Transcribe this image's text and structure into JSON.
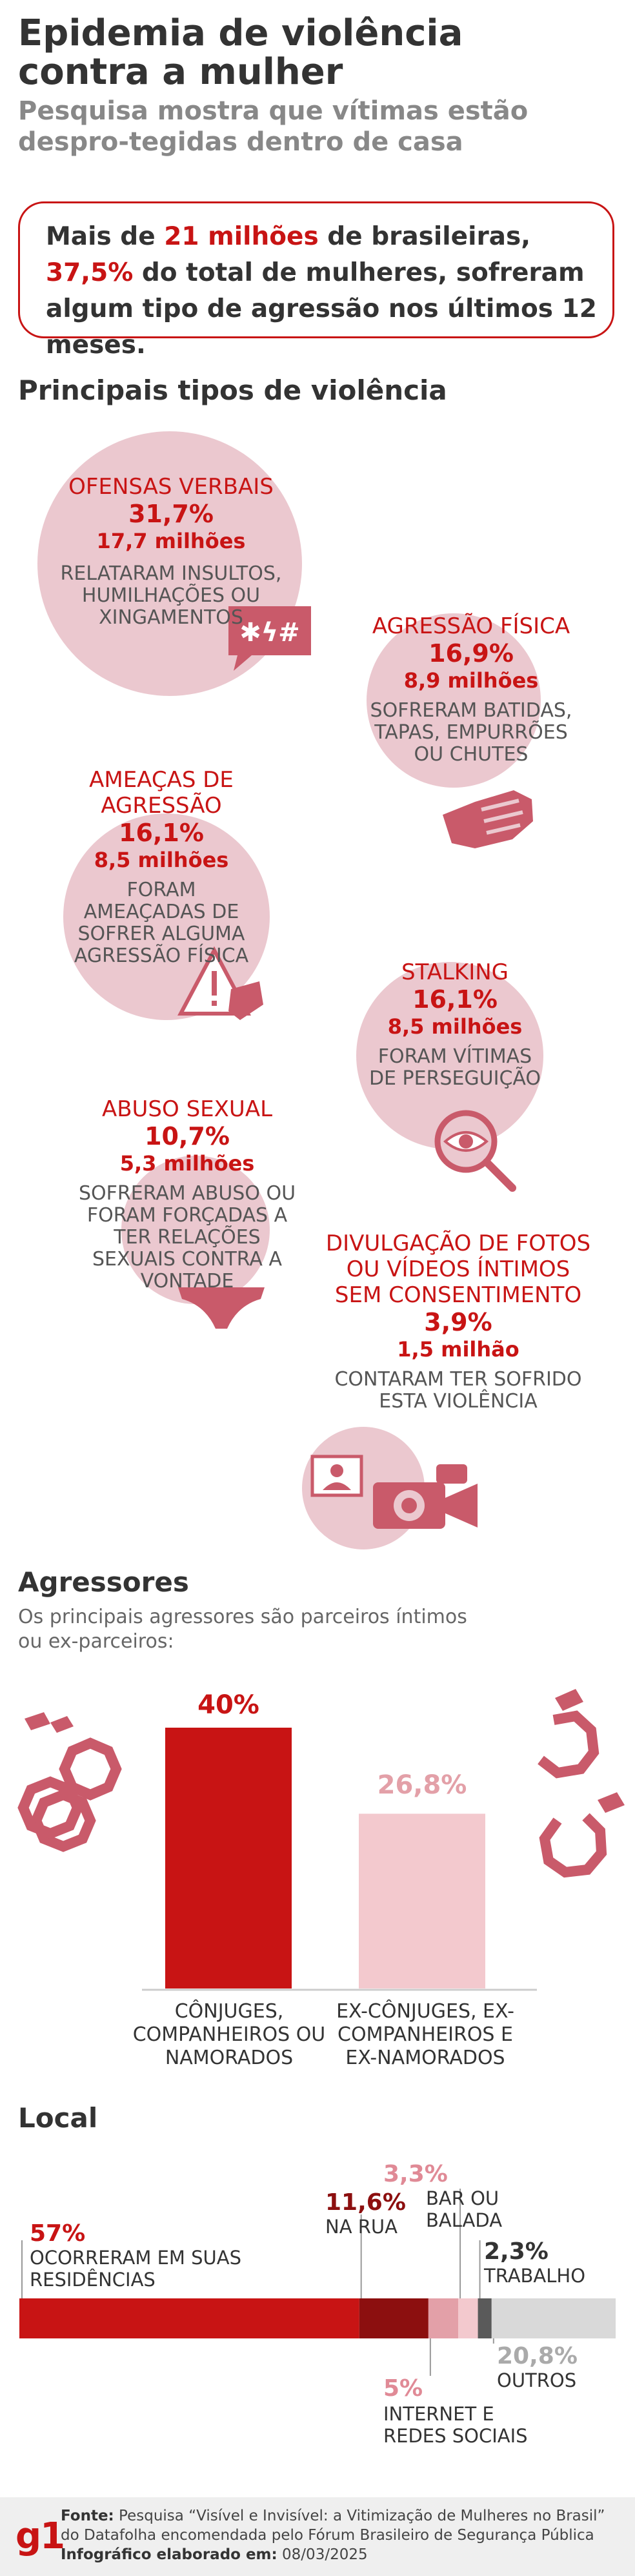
{
  "header": {
    "title": "Epidemia de violência contra a mulher",
    "subtitle": "Pesquisa mostra que vítimas estão despro-tegidas dentro de casa"
  },
  "callout": {
    "part1": "Mais de ",
    "highlight1": "21 milhões",
    "part2": " de brasileiras, ",
    "highlight2": "37,5%",
    "part3": " do total de mulheres, sofreram algum tipo de agressão nos últimos 12 meses."
  },
  "violence": {
    "title": "Principais tipos de violência",
    "items": [
      {
        "category": "OFENSAS VERBAIS",
        "percent": "31,7%",
        "absolute": "17,7 milhões",
        "description": "RELATARAM INSULTOS, HUMILHAÇÕES OU XINGAMENTOS",
        "icon": "speech-bubble-icon",
        "icon_text": "✱ϟ#"
      },
      {
        "category": "AGRESSÃO FÍSICA",
        "percent": "16,9%",
        "absolute": "8,9 milhões",
        "description": "SOFRERAM BATIDAS, TAPAS, EMPURRÕES OU CHUTES",
        "icon": "fist-icon"
      },
      {
        "category": "AMEAÇAS DE AGRESSÃO",
        "percent": "16,1%",
        "absolute": "8,5 milhões",
        "description": "FORAM AMEAÇADAS DE SOFRER ALGUMA AGRESSÃO FÍSICA",
        "icon": "warning-icon"
      },
      {
        "category": "STALKING",
        "percent": "16,1%",
        "absolute": "8,5 milhões",
        "description": "FORAM VÍTIMAS DE PERSEGUIÇÃO",
        "icon": "magnifier-eye-icon"
      },
      {
        "category": "ABUSO SEXUAL",
        "percent": "10,7%",
        "absolute": "5,3 milhões",
        "description": "SOFRERAM ABUSO OU FORAM FORÇADAS A TER RELAÇÕES SEXUAIS CONTRA A VONTADE",
        "icon": "underwear-icon"
      },
      {
        "category": "DIVULGAÇÃO DE FOTOS OU VÍDEOS ÍNTIMOS SEM CONSENTIMENTO",
        "percent": "3,9%",
        "absolute": "1,5 milhão",
        "description": "CONTARAM TER SOFRIDO ESTA VIOLÊNCIA",
        "icon": "camera-photo-icon"
      }
    ]
  },
  "aggressors": {
    "title": "Agressores",
    "description": "Os principais agressores são parceiros íntimos ou ex-parceiros:"
  },
  "location": {
    "title": "Local"
  },
  "chart_data": [
    {
      "type": "bar",
      "categories": [
        "CÔNJUGES, COMPANHEIROS OU NAMORADOS",
        "EX-CÔNJUGES, EX-COMPANHEIROS E EX-NAMORADOS"
      ],
      "values": [
        40,
        26.8
      ],
      "value_labels": [
        "40%",
        "26,8%"
      ],
      "colors": [
        "#c81414",
        "#f3c9ce"
      ],
      "ylim": [
        0,
        40
      ]
    },
    {
      "type": "bar",
      "orientation": "horizontal-stacked",
      "categories": [
        "OCORRERAM EM SUAS RESIDÊNCIAS",
        "NA RUA",
        "INTERNET E REDES SOCIAIS",
        "BAR OU BALADA",
        "TRABALHO",
        "OUTROS"
      ],
      "values": [
        57,
        11.6,
        5,
        3.3,
        2.3,
        20.8
      ],
      "value_labels": [
        "57%",
        "11,6%",
        "5%",
        "3,3%",
        "2,3%",
        "20,8%"
      ],
      "colors": [
        "#c81414",
        "#8c0f0f",
        "#e3a0a8",
        "#f3c9ce",
        "#5a5a5a",
        "#d9d9d9"
      ]
    }
  ],
  "footer": {
    "logo": "g1",
    "source_label": "Fonte:",
    "source_text": " Pesquisa “Visível e Invisível: a Vitimização de Mulheres no Brasil” do Datafolha encomendada pelo Fórum Brasileiro de Segurança Pública",
    "date_label": "Infográfico elaborado em:",
    "date_text": " 08/03/2025"
  }
}
